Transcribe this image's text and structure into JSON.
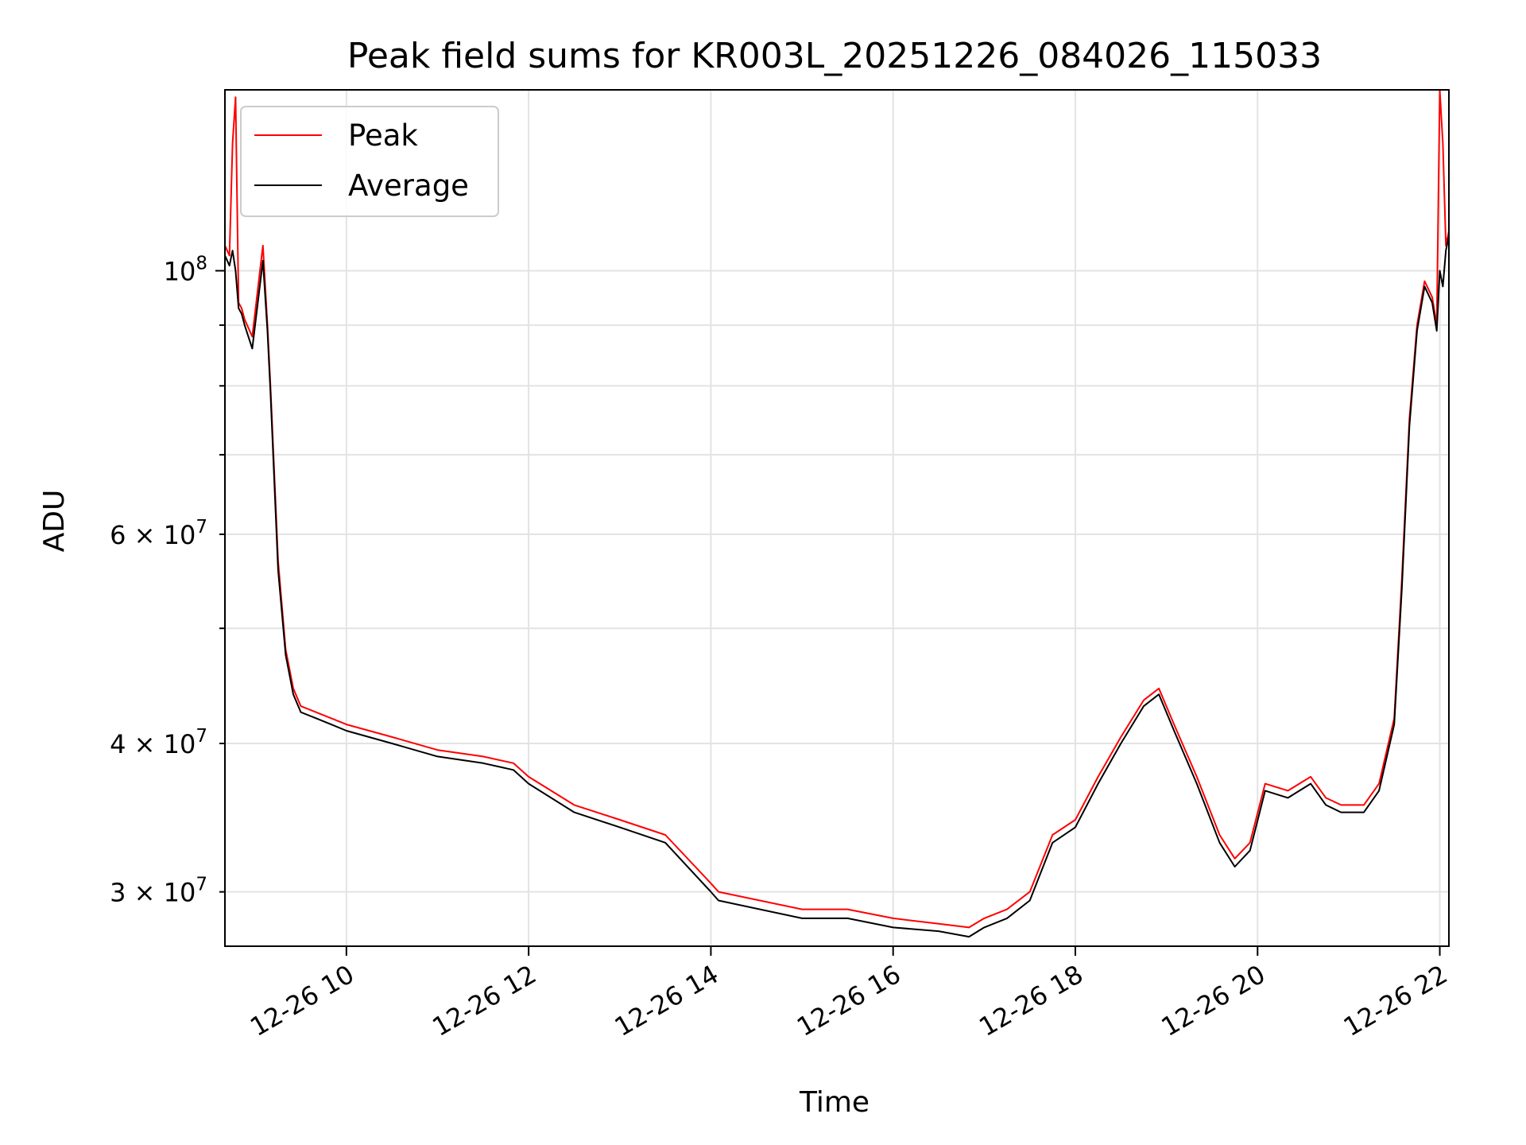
{
  "chart_data": {
    "type": "line",
    "title": "Peak field sums for KR003L_20251226_084026_115033",
    "xlabel": "Time",
    "ylabel": "ADU",
    "x_scale": "time",
    "y_scale": "log",
    "xlim": [
      "2025-12-26 08:40",
      "2025-12-26 22:06"
    ],
    "ylim": [
      27000000,
      142000000
    ],
    "grid": true,
    "legend_position": "top-left",
    "x_ticks": [
      {
        "value": "2025-12-26 10:00",
        "label": "12-26 10"
      },
      {
        "value": "2025-12-26 12:00",
        "label": "12-26 12"
      },
      {
        "value": "2025-12-26 14:00",
        "label": "12-26 14"
      },
      {
        "value": "2025-12-26 16:00",
        "label": "12-26 16"
      },
      {
        "value": "2025-12-26 18:00",
        "label": "12-26 18"
      },
      {
        "value": "2025-12-26 20:00",
        "label": "12-26 20"
      },
      {
        "value": "2025-12-26 22:00",
        "label": "12-26 22"
      }
    ],
    "y_major_ticks": [
      {
        "value": 100000000,
        "base": "10",
        "exp": "8"
      }
    ],
    "y_minor_ticks": [
      {
        "value": 30000000,
        "mant": "3",
        "base": "10",
        "exp": "7"
      },
      {
        "value": 40000000,
        "mant": "4",
        "base": "10",
        "exp": "7"
      },
      {
        "value": 60000000,
        "mant": "6",
        "base": "10",
        "exp": "7"
      }
    ],
    "y_unlabeled_ticks": [
      50000000,
      70000000,
      80000000,
      90000000
    ],
    "series": [
      {
        "name": "Peak",
        "color": "#ff0000",
        "x": [
          "2025-12-26 08:40",
          "2025-12-26 08:43",
          "2025-12-26 08:45",
          "2025-12-26 08:47",
          "2025-12-26 08:49",
          "2025-12-26 08:51",
          "2025-12-26 08:53",
          "2025-12-26 08:58",
          "2025-12-26 09:05",
          "2025-12-26 09:08",
          "2025-12-26 09:10",
          "2025-12-26 09:12",
          "2025-12-26 09:15",
          "2025-12-26 09:20",
          "2025-12-26 09:25",
          "2025-12-26 09:30",
          "2025-12-26 09:40",
          "2025-12-26 09:50",
          "2025-12-26 10:00",
          "2025-12-26 10:30",
          "2025-12-26 11:00",
          "2025-12-26 11:30",
          "2025-12-26 11:50",
          "2025-12-26 12:00",
          "2025-12-26 12:30",
          "2025-12-26 13:00",
          "2025-12-26 13:30",
          "2025-12-26 14:00",
          "2025-12-26 14:05",
          "2025-12-26 15:00",
          "2025-12-26 15:30",
          "2025-12-26 16:00",
          "2025-12-26 16:30",
          "2025-12-26 16:50",
          "2025-12-26 17:00",
          "2025-12-26 17:15",
          "2025-12-26 17:30",
          "2025-12-26 17:45",
          "2025-12-26 18:00",
          "2025-12-26 18:15",
          "2025-12-26 18:30",
          "2025-12-26 18:45",
          "2025-12-26 18:55",
          "2025-12-26 19:05",
          "2025-12-26 19:20",
          "2025-12-26 19:35",
          "2025-12-26 19:45",
          "2025-12-26 19:55",
          "2025-12-26 20:05",
          "2025-12-26 20:20",
          "2025-12-26 20:35",
          "2025-12-26 20:45",
          "2025-12-26 20:55",
          "2025-12-26 21:10",
          "2025-12-26 21:20",
          "2025-12-26 21:30",
          "2025-12-26 21:35",
          "2025-12-26 21:40",
          "2025-12-26 21:45",
          "2025-12-26 21:50",
          "2025-12-26 21:55",
          "2025-12-26 21:58",
          "2025-12-26 22:00",
          "2025-12-26 22:02",
          "2025-12-26 22:04",
          "2025-12-26 22:06"
        ],
        "y": [
          105000000,
          103000000,
          128000000,
          140000000,
          94000000,
          93000000,
          91000000,
          88000000,
          105000000,
          90000000,
          80000000,
          70000000,
          57000000,
          48000000,
          44500000,
          43000000,
          42500000,
          42000000,
          41500000,
          40500000,
          39500000,
          39000000,
          38500000,
          37500000,
          35500000,
          34500000,
          33500000,
          30500000,
          30000000,
          29000000,
          29000000,
          28500000,
          28200000,
          28000000,
          28500000,
          29000000,
          30000000,
          33500000,
          34500000,
          37500000,
          40500000,
          43500000,
          44500000,
          41500000,
          37500000,
          33500000,
          32000000,
          33000000,
          37000000,
          36500000,
          37500000,
          36000000,
          35500000,
          35500000,
          37000000,
          42000000,
          55000000,
          75000000,
          90000000,
          98000000,
          95000000,
          90000000,
          142000000,
          128000000,
          105000000,
          108000000
        ]
      },
      {
        "name": "Average",
        "color": "#000000",
        "x": [
          "2025-12-26 08:40",
          "2025-12-26 08:43",
          "2025-12-26 08:45",
          "2025-12-26 08:47",
          "2025-12-26 08:49",
          "2025-12-26 08:51",
          "2025-12-26 08:53",
          "2025-12-26 08:58",
          "2025-12-26 09:05",
          "2025-12-26 09:08",
          "2025-12-26 09:10",
          "2025-12-26 09:12",
          "2025-12-26 09:15",
          "2025-12-26 09:20",
          "2025-12-26 09:25",
          "2025-12-26 09:30",
          "2025-12-26 09:40",
          "2025-12-26 09:50",
          "2025-12-26 10:00",
          "2025-12-26 10:30",
          "2025-12-26 11:00",
          "2025-12-26 11:30",
          "2025-12-26 11:50",
          "2025-12-26 12:00",
          "2025-12-26 12:30",
          "2025-12-26 13:00",
          "2025-12-26 13:30",
          "2025-12-26 14:00",
          "2025-12-26 14:05",
          "2025-12-26 15:00",
          "2025-12-26 15:30",
          "2025-12-26 16:00",
          "2025-12-26 16:30",
          "2025-12-26 16:50",
          "2025-12-26 17:00",
          "2025-12-26 17:15",
          "2025-12-26 17:30",
          "2025-12-26 17:45",
          "2025-12-26 18:00",
          "2025-12-26 18:15",
          "2025-12-26 18:30",
          "2025-12-26 18:45",
          "2025-12-26 18:55",
          "2025-12-26 19:05",
          "2025-12-26 19:20",
          "2025-12-26 19:35",
          "2025-12-26 19:45",
          "2025-12-26 19:55",
          "2025-12-26 20:05",
          "2025-12-26 20:20",
          "2025-12-26 20:35",
          "2025-12-26 20:45",
          "2025-12-26 20:55",
          "2025-12-26 21:10",
          "2025-12-26 21:20",
          "2025-12-26 21:30",
          "2025-12-26 21:35",
          "2025-12-26 21:40",
          "2025-12-26 21:45",
          "2025-12-26 21:50",
          "2025-12-26 21:55",
          "2025-12-26 21:58",
          "2025-12-26 22:00",
          "2025-12-26 22:02",
          "2025-12-26 22:04",
          "2025-12-26 22:06"
        ],
        "y": [
          103000000,
          101000000,
          104000000,
          100000000,
          93000000,
          92000000,
          90000000,
          86000000,
          102000000,
          89000000,
          79000000,
          69000000,
          56000000,
          47500000,
          44000000,
          42500000,
          42000000,
          41500000,
          41000000,
          40000000,
          39000000,
          38500000,
          38000000,
          37000000,
          35000000,
          34000000,
          33000000,
          30000000,
          29500000,
          28500000,
          28500000,
          28000000,
          27800000,
          27500000,
          28000000,
          28500000,
          29500000,
          33000000,
          34000000,
          37000000,
          40000000,
          43000000,
          44000000,
          41000000,
          37000000,
          33000000,
          31500000,
          32500000,
          36500000,
          36000000,
          37000000,
          35500000,
          35000000,
          35000000,
          36500000,
          41500000,
          54000000,
          74000000,
          89000000,
          97000000,
          94000000,
          89000000,
          100000000,
          97000000,
          104000000,
          107000000
        ]
      }
    ]
  }
}
